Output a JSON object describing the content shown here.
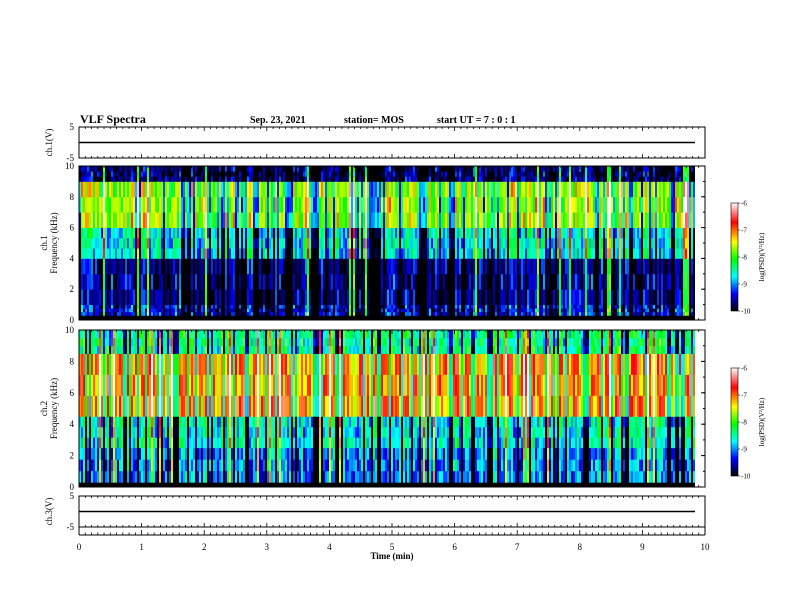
{
  "header": {
    "title": "VLF Spectra",
    "date": "Sep. 23, 2021",
    "station": "station= MOS",
    "start": "start  UT =   7 : 0  : 1"
  },
  "colors": {
    "spectrogram_scale": [
      "#ffffff",
      "#ff0000",
      "#ffff00",
      "#00ff00",
      "#00ffff",
      "#0000ff",
      "#000000"
    ]
  },
  "chart_data": [
    {
      "type": "line",
      "name": "ch1-waveform",
      "ylabel": "ch.1(V)",
      "ylim": [
        -5,
        5
      ],
      "yticks": [
        "5",
        "-5"
      ],
      "x": [
        0,
        10
      ],
      "y": [
        0,
        0
      ],
      "xlim": [
        0,
        10
      ]
    },
    {
      "type": "heatmap",
      "name": "ch1-spectrogram",
      "ylabel": "ch.1\nFrequency (kHz)",
      "ylim": [
        0,
        10
      ],
      "yticks": [
        "0",
        "2",
        "4",
        "6",
        "8",
        "10"
      ],
      "xlim": [
        0,
        10
      ],
      "data_end_min": 9.83,
      "colorbar": {
        "label": "log(PSD)(V²/Hz)",
        "range": [
          -10,
          -6
        ],
        "ticks": [
          "-6",
          "-7",
          "-8",
          "-9",
          "-10"
        ]
      },
      "bands": [
        {
          "f": [
            0.0,
            0.3
          ],
          "level": -10
        },
        {
          "f": [
            0.3,
            1.0
          ],
          "level": -9.4
        },
        {
          "f": [
            1.0,
            4.0
          ],
          "level": -9.6
        },
        {
          "f": [
            4.0,
            6.0
          ],
          "level": -8.6
        },
        {
          "f": [
            6.0,
            9.0
          ],
          "level": -7.6
        },
        {
          "f": [
            9.0,
            10.0
          ],
          "level": -9.7
        }
      ]
    },
    {
      "type": "heatmap",
      "name": "ch2-spectrogram",
      "ylabel": "ch.2\nFrequency (kHz)",
      "ylim": [
        0,
        10
      ],
      "yticks": [
        "0",
        "2",
        "4",
        "6",
        "8",
        "10"
      ],
      "xlim": [
        0,
        10
      ],
      "data_end_min": 9.83,
      "colorbar": {
        "label": "log(PSD)(V²/Hz)",
        "range": [
          -10,
          -6
        ],
        "ticks": [
          "-6",
          "-7",
          "-8",
          "-9",
          "-10"
        ]
      },
      "bands": [
        {
          "f": [
            0.0,
            0.3
          ],
          "level": -10
        },
        {
          "f": [
            0.3,
            2.5
          ],
          "level": -9.0
        },
        {
          "f": [
            2.5,
            4.5
          ],
          "level": -8.6
        },
        {
          "f": [
            4.5,
            8.5
          ],
          "level": -7.0
        },
        {
          "f": [
            8.5,
            10.0
          ],
          "level": -8.3
        }
      ]
    },
    {
      "type": "line",
      "name": "ch3-waveform",
      "ylabel": "ch.3(V)",
      "ylim": [
        -5,
        5
      ],
      "yticks": [
        "5",
        "-5"
      ],
      "x": [
        0,
        10
      ],
      "y": [
        0,
        0
      ],
      "xlim": [
        0,
        10
      ],
      "xlabel": "Time  (min)",
      "xticks": [
        "0",
        "1",
        "2",
        "3",
        "4",
        "5",
        "6",
        "7",
        "8",
        "9",
        "10"
      ]
    }
  ]
}
